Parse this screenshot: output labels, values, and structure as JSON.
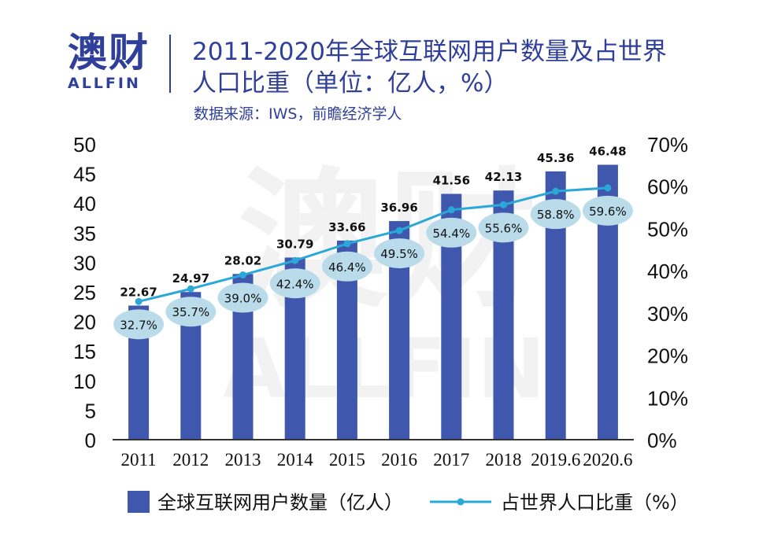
{
  "brand": {
    "name_cn": "澳财",
    "name_en": "ALLFIN"
  },
  "header": {
    "title_line1": "2011-2020年全球互联网用户数量及占世界",
    "title_line2": "人口比重（单位：亿人，%）",
    "source": "数据来源：IWS，前瞻经济学人"
  },
  "colors": {
    "bar": "#3f58ad",
    "line": "#2aa8d8",
    "label_bubble": "#b9dbea",
    "title": "#2f3f9a"
  },
  "chart_data": {
    "type": "bar",
    "categories": [
      "2011",
      "2012",
      "2013",
      "2014",
      "2015",
      "2016",
      "2017",
      "2018",
      "2019.6",
      "2020.6"
    ],
    "series": [
      {
        "name": "全球互联网用户数量（亿人）",
        "type": "bar",
        "axis": "left",
        "values": [
          22.67,
          24.97,
          28.02,
          30.79,
          33.66,
          36.96,
          41.56,
          42.13,
          45.36,
          46.48
        ],
        "labels": [
          "22.67",
          "24.97",
          "28.02",
          "30.79",
          "33.66",
          "36.96",
          "41.56",
          "42.13",
          "45.36",
          "46.48"
        ]
      },
      {
        "name": "占世界人口比重（%）",
        "type": "line",
        "axis": "right",
        "values": [
          32.7,
          35.7,
          39.0,
          42.4,
          46.4,
          49.5,
          54.4,
          55.6,
          58.8,
          59.6
        ],
        "labels": [
          "32.7%",
          "35.7%",
          "39.0%",
          "42.4%",
          "46.4%",
          "49.5%",
          "54.4%",
          "55.6%",
          "58.8%",
          "59.6%"
        ]
      }
    ],
    "y_left": {
      "ylim": [
        0,
        50
      ],
      "ticks": [
        "0",
        "5",
        "10",
        "15",
        "20",
        "25",
        "30",
        "35",
        "40",
        "45",
        "50"
      ]
    },
    "y_right": {
      "ylim": [
        0,
        70
      ],
      "ticks": [
        "0%",
        "10%",
        "20%",
        "30%",
        "40%",
        "50%",
        "60%",
        "70%"
      ]
    },
    "legend_position": "bottom",
    "grid": false
  }
}
